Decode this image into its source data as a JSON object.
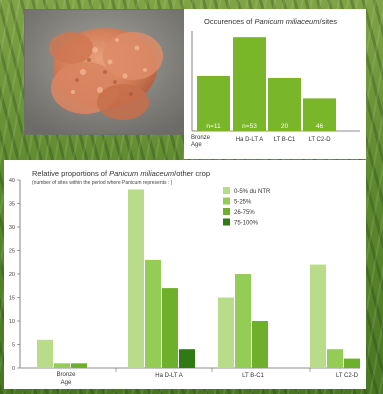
{
  "top_chart_title_prefix": "Occurences of ",
  "top_chart_title_italic": "Panicum miliaceum",
  "top_chart_title_suffix": "/sites",
  "bottom_chart_title_prefix": "Relative proportions of ",
  "bottom_chart_title_italic": "Panicum miliaceum",
  "bottom_chart_title_suffix": "/other crop",
  "bottom_chart_subtitle": "(number of sites within the period where Panicum represents : )",
  "colors": {
    "top_bar": "#7ab62a",
    "series": [
      "#b9dc8a",
      "#93cd55",
      "#6eb02c",
      "#2f7a14"
    ]
  },
  "chart_data": [
    {
      "type": "bar",
      "title": "Occurences of Panicum miliaceum/sites",
      "categories": [
        "Bronze Age",
        "Ha D-LT A",
        "LT B-C1",
        "LT C2-D"
      ],
      "values": [
        27,
        46,
        26,
        16
      ],
      "data_labels": [
        "n=11",
        "n=53",
        "20",
        "46"
      ],
      "ylim": [
        0,
        50
      ]
    },
    {
      "type": "bar",
      "title": "Relative proportions of Panicum miliaceum/other crop",
      "subtitle": "(number of sites within the period where Panicum represents : )",
      "categories": [
        "Bronze Age",
        "Ha D-LT A",
        "LT B-C1",
        "LT C2-D"
      ],
      "y_ticks": [
        0,
        5,
        10,
        15,
        20,
        25,
        30,
        35,
        40
      ],
      "ylim": [
        0,
        40
      ],
      "legend_position": "top-right",
      "series": [
        {
          "name": "0-5%  du NTR",
          "values": [
            6,
            38,
            15,
            22
          ]
        },
        {
          "name": "5-25%",
          "values": [
            1,
            23,
            20,
            4
          ]
        },
        {
          "name": "26-75%",
          "values": [
            1,
            17,
            10,
            2
          ]
        },
        {
          "name": "75-100%",
          "values": [
            0,
            4,
            0,
            0
          ]
        }
      ]
    }
  ]
}
